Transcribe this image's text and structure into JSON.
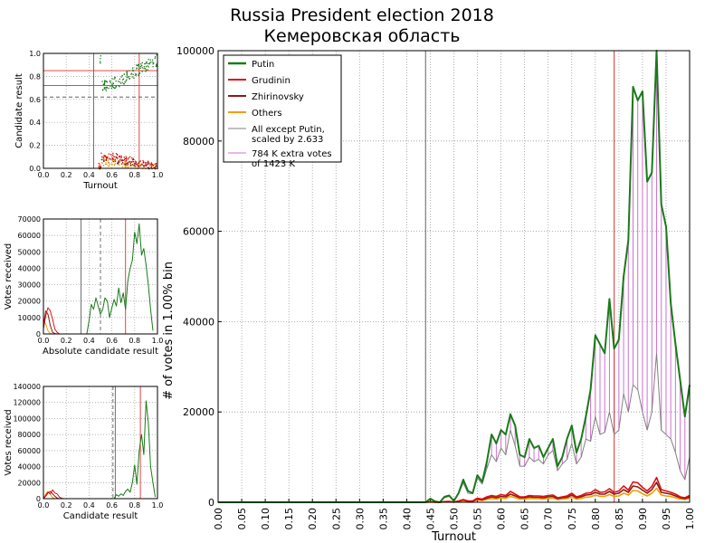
{
  "title_line1": "Russia President election 2018",
  "title_line2": "Кемеровская область",
  "colors": {
    "putin": "#1a7a1a",
    "grudinin": "#e01010",
    "zhirinovsky": "#8b1a1a",
    "others": "#f0a000",
    "scaled": "#808080",
    "extra": "#d070d0",
    "marker_red": "#e03030",
    "marker_gray": "#606060"
  },
  "chart_data": [
    {
      "id": "main",
      "type": "line",
      "xlabel": "Turnout",
      "ylabel": "# of votes in 1.00% bin",
      "xlim": [
        0,
        1
      ],
      "ylim": [
        0,
        100000
      ],
      "xticks": [
        "0.00",
        "0.05",
        "0.10",
        "0.15",
        "0.20",
        "0.25",
        "0.30",
        "0.35",
        "0.40",
        "0.45",
        "0.50",
        "0.55",
        "0.60",
        "0.65",
        "0.70",
        "0.75",
        "0.80",
        "0.85",
        "0.90",
        "0.95",
        "1.00"
      ],
      "yticks": [
        0,
        20000,
        40000,
        60000,
        80000,
        100000
      ],
      "vlines": [
        {
          "x": 0.44,
          "color": "gray"
        },
        {
          "x": 0.84,
          "color": "red"
        }
      ],
      "legend": [
        {
          "label": "Putin",
          "color": "putin"
        },
        {
          "label": "Grudinin",
          "color": "grudinin"
        },
        {
          "label": "Zhirinovsky",
          "color": "zhirinovsky"
        },
        {
          "label": "Others",
          "color": "others"
        },
        {
          "label": "All except Putin,",
          "label2": "scaled by 2.633",
          "color": "scaled"
        },
        {
          "label": "784 K extra votes",
          "label2": "of 1423 K",
          "color": "extra"
        }
      ],
      "x": [
        0.44,
        0.45,
        0.46,
        0.47,
        0.48,
        0.49,
        0.5,
        0.51,
        0.52,
        0.53,
        0.54,
        0.55,
        0.56,
        0.57,
        0.58,
        0.59,
        0.6,
        0.61,
        0.62,
        0.63,
        0.64,
        0.65,
        0.66,
        0.67,
        0.68,
        0.69,
        0.7,
        0.71,
        0.72,
        0.73,
        0.74,
        0.75,
        0.76,
        0.77,
        0.78,
        0.79,
        0.8,
        0.81,
        0.82,
        0.83,
        0.84,
        0.85,
        0.86,
        0.87,
        0.88,
        0.89,
        0.9,
        0.91,
        0.92,
        0.93,
        0.94,
        0.95,
        0.96,
        0.97,
        0.98,
        0.99,
        1.0
      ],
      "series": [
        {
          "name": "Putin",
          "color": "putin",
          "values": [
            0,
            800,
            200,
            0,
            1200,
            1500,
            300,
            2000,
            5000,
            2500,
            2000,
            6000,
            4500,
            9000,
            15000,
            13000,
            16000,
            15000,
            19500,
            17000,
            10500,
            10000,
            14000,
            12000,
            12500,
            10000,
            12000,
            14000,
            8000,
            10000,
            14000,
            17000,
            11000,
            14000,
            19000,
            25000,
            37000,
            35000,
            33000,
            45000,
            34000,
            36000,
            50000,
            58000,
            92000,
            89000,
            91000,
            71000,
            73000,
            100000,
            66000,
            61000,
            44000,
            35000,
            27000,
            19000,
            26000
          ]
        },
        {
          "name": "Grudinin",
          "color": "grudinin",
          "values": [
            0,
            100,
            50,
            0,
            150,
            200,
            50,
            300,
            600,
            300,
            300,
            900,
            700,
            1200,
            1500,
            1300,
            1700,
            1500,
            2400,
            1800,
            1200,
            1200,
            1500,
            1400,
            1400,
            1300,
            1500,
            1600,
            1000,
            1200,
            1400,
            2000,
            1200,
            1500,
            2000,
            2100,
            2800,
            2200,
            2300,
            3000,
            2200,
            2500,
            3600,
            2700,
            4500,
            4300,
            3300,
            2500,
            3500,
            5500,
            2800,
            2500,
            2200,
            1800,
            1200,
            1000,
            1500
          ]
        },
        {
          "name": "Zhirinovsky",
          "color": "zhirinovsky",
          "values": [
            0,
            80,
            40,
            0,
            120,
            150,
            40,
            250,
            500,
            250,
            250,
            700,
            550,
            900,
            1200,
            1000,
            1300,
            1200,
            1800,
            1400,
            1000,
            1000,
            1200,
            1100,
            1100,
            1000,
            1200,
            1300,
            800,
            1000,
            1100,
            1600,
            1000,
            1200,
            1600,
            1700,
            2200,
            1800,
            1800,
            2400,
            1800,
            2000,
            2800,
            2200,
            3600,
            3400,
            2700,
            2000,
            2800,
            4400,
            2200,
            2000,
            1800,
            1400,
            1000,
            800,
            1200
          ]
        },
        {
          "name": "Others",
          "color": "others",
          "values": [
            0,
            60,
            30,
            0,
            90,
            110,
            30,
            180,
            350,
            180,
            180,
            500,
            400,
            650,
            850,
            700,
            950,
            850,
            1300,
            1000,
            700,
            700,
            850,
            800,
            800,
            700,
            850,
            950,
            600,
            700,
            800,
            1150,
            700,
            850,
            1150,
            1200,
            1600,
            1300,
            1300,
            1700,
            1300,
            1400,
            2000,
            1600,
            2600,
            2500,
            1900,
            1400,
            2000,
            3100,
            1600,
            1400,
            1300,
            1000,
            700,
            600,
            900
          ]
        },
        {
          "name": "All except Putin, scaled by 2.633",
          "color": "scaled",
          "values": [
            0,
            700,
            180,
            0,
            1000,
            1300,
            250,
            1900,
            4300,
            2000,
            1900,
            5400,
            4000,
            7500,
            10500,
            9000,
            12000,
            10500,
            16000,
            12500,
            8000,
            8000,
            10000,
            9000,
            9500,
            8500,
            10500,
            11500,
            7000,
            8500,
            9500,
            13000,
            8500,
            10000,
            14000,
            13500,
            19000,
            15000,
            15500,
            20000,
            15000,
            16000,
            24000,
            20000,
            26000,
            25000,
            20000,
            16000,
            20000,
            33000,
            16000,
            15000,
            14000,
            11000,
            7000,
            5000,
            10000
          ]
        }
      ]
    },
    {
      "id": "scatter",
      "type": "scatter",
      "xlabel": "Turnout",
      "ylabel": "Candidate result",
      "xlim": [
        0,
        1
      ],
      "ylim": [
        0,
        1
      ],
      "xticks": [
        "0.0",
        "0.2",
        "0.4",
        "0.6",
        "0.8",
        "1.0"
      ],
      "yticks": [
        "0.0",
        "0.2",
        "0.4",
        "0.6",
        "0.8",
        "1.0"
      ],
      "hlines": [
        {
          "y": 0.85,
          "color": "red"
        },
        {
          "y": 0.72,
          "color": "gray"
        },
        {
          "y": 0.62,
          "color": "gray-dashed"
        }
      ],
      "vlines": [
        {
          "x": 0.44,
          "color": "gray"
        },
        {
          "x": 0.84,
          "color": "red"
        }
      ],
      "series": [
        {
          "name": "Putin",
          "color": "putin",
          "trend": [
            [
              0.5,
              0.72
            ],
            [
              0.6,
              0.74
            ],
            [
              0.7,
              0.78
            ],
            [
              0.8,
              0.85
            ],
            [
              0.9,
              0.9
            ],
            [
              1.0,
              0.95
            ]
          ]
        },
        {
          "name": "Grudinin",
          "color": "grudinin",
          "trend": [
            [
              0.5,
              0.12
            ],
            [
              0.6,
              0.11
            ],
            [
              0.7,
              0.09
            ],
            [
              0.8,
              0.07
            ],
            [
              0.9,
              0.04
            ],
            [
              1.0,
              0.02
            ]
          ]
        },
        {
          "name": "Zhirinovsky",
          "color": "zhirinovsky",
          "trend": [
            [
              0.5,
              0.09
            ],
            [
              0.6,
              0.08
            ],
            [
              0.7,
              0.07
            ],
            [
              0.8,
              0.05
            ],
            [
              0.9,
              0.03
            ],
            [
              1.0,
              0.02
            ]
          ]
        },
        {
          "name": "Others",
          "color": "others",
          "trend": [
            [
              0.5,
              0.06
            ],
            [
              0.6,
              0.05
            ],
            [
              0.7,
              0.04
            ],
            [
              0.8,
              0.03
            ],
            [
              0.9,
              0.02
            ],
            [
              1.0,
              0.01
            ]
          ]
        }
      ]
    },
    {
      "id": "absolute",
      "type": "line",
      "xlabel": "Absolute candidate result",
      "ylabel": "Votes received",
      "xlim": [
        0,
        1
      ],
      "ylim": [
        0,
        70000
      ],
      "xticks": [
        "0.0",
        "0.2",
        "0.4",
        "0.6",
        "0.8",
        "1.0"
      ],
      "yticks": [
        "0",
        "10000",
        "20000",
        "30000",
        "40000",
        "50000",
        "60000",
        "70000"
      ],
      "vlines": [
        {
          "x": 0.33,
          "color": "gray"
        },
        {
          "x": 0.5,
          "color": "gray-dashed"
        },
        {
          "x": 0.72,
          "color": "red"
        }
      ],
      "series": [
        {
          "name": "Putin",
          "color": "putin",
          "x": [
            0.38,
            0.4,
            0.42,
            0.44,
            0.46,
            0.48,
            0.5,
            0.52,
            0.54,
            0.56,
            0.58,
            0.6,
            0.62,
            0.64,
            0.66,
            0.68,
            0.7,
            0.72,
            0.74,
            0.76,
            0.78,
            0.8,
            0.82,
            0.84,
            0.86,
            0.88,
            0.9,
            0.92,
            0.94,
            0.96
          ],
          "values": [
            0,
            8000,
            18000,
            15000,
            22000,
            17000,
            12000,
            15000,
            22000,
            20000,
            10000,
            16000,
            21000,
            17000,
            28000,
            19000,
            25000,
            15000,
            32000,
            40000,
            45000,
            62000,
            55000,
            67000,
            48000,
            52000,
            42000,
            30000,
            15000,
            2000
          ]
        },
        {
          "name": "Grudinin",
          "color": "grudinin",
          "values_x": [
            0.0,
            0.02,
            0.04,
            0.06,
            0.08,
            0.1,
            0.12,
            0.14
          ],
          "values": [
            3000,
            11000,
            16000,
            14000,
            9000,
            3000,
            1000,
            0
          ]
        },
        {
          "name": "Zhirinovsky",
          "color": "zhirinovsky",
          "values_x": [
            0.0,
            0.02,
            0.04,
            0.06,
            0.08,
            0.1,
            0.12
          ],
          "values": [
            5000,
            14000,
            12000,
            5000,
            1000,
            200,
            0
          ]
        },
        {
          "name": "Others",
          "color": "others",
          "values_x": [
            0.0,
            0.02,
            0.04,
            0.06,
            0.08
          ],
          "values": [
            8000,
            6000,
            2000,
            300,
            0
          ]
        }
      ]
    },
    {
      "id": "result",
      "type": "line",
      "xlabel": "Candidate result",
      "ylabel": "Votes received",
      "xlim": [
        0,
        1
      ],
      "ylim": [
        0,
        140000
      ],
      "xticks": [
        "0.0",
        "0.2",
        "0.4",
        "0.6",
        "0.8",
        "1.0"
      ],
      "yticks": [
        "0",
        "20000",
        "40000",
        "60000",
        "80000",
        "100000",
        "120000",
        "140000"
      ],
      "vlines": [
        {
          "x": 0.61,
          "color": "gray-dashed"
        },
        {
          "x": 0.63,
          "color": "gray"
        },
        {
          "x": 0.85,
          "color": "red"
        }
      ],
      "series": [
        {
          "name": "Putin",
          "color": "putin",
          "x": [
            0.62,
            0.64,
            0.66,
            0.68,
            0.7,
            0.72,
            0.74,
            0.76,
            0.78,
            0.8,
            0.82,
            0.84,
            0.86,
            0.88,
            0.9,
            0.92,
            0.94,
            0.96,
            0.98
          ],
          "values": [
            0,
            5000,
            3000,
            6000,
            4000,
            9000,
            12000,
            8000,
            20000,
            42000,
            18000,
            60000,
            80000,
            55000,
            122000,
            95000,
            40000,
            20000,
            2000
          ]
        },
        {
          "name": "Grudinin",
          "color": "grudinin",
          "values_x": [
            0.0,
            0.02,
            0.04,
            0.06,
            0.08,
            0.1,
            0.12,
            0.14,
            0.16,
            0.18
          ],
          "values": [
            0,
            4000,
            8000,
            6000,
            11000,
            7000,
            6000,
            2000,
            500,
            0
          ]
        },
        {
          "name": "Zhirinovsky",
          "color": "zhirinovsky",
          "values_x": [
            0.0,
            0.02,
            0.04,
            0.06,
            0.08,
            0.1,
            0.12,
            0.14
          ],
          "values": [
            0,
            3000,
            7000,
            9000,
            6000,
            3000,
            800,
            0
          ]
        },
        {
          "name": "Others",
          "color": "others",
          "values_x": [
            0.0,
            0.02,
            0.04,
            0.06,
            0.08,
            0.1
          ],
          "values": [
            0,
            6000,
            9000,
            5000,
            1500,
            0
          ]
        }
      ]
    }
  ]
}
